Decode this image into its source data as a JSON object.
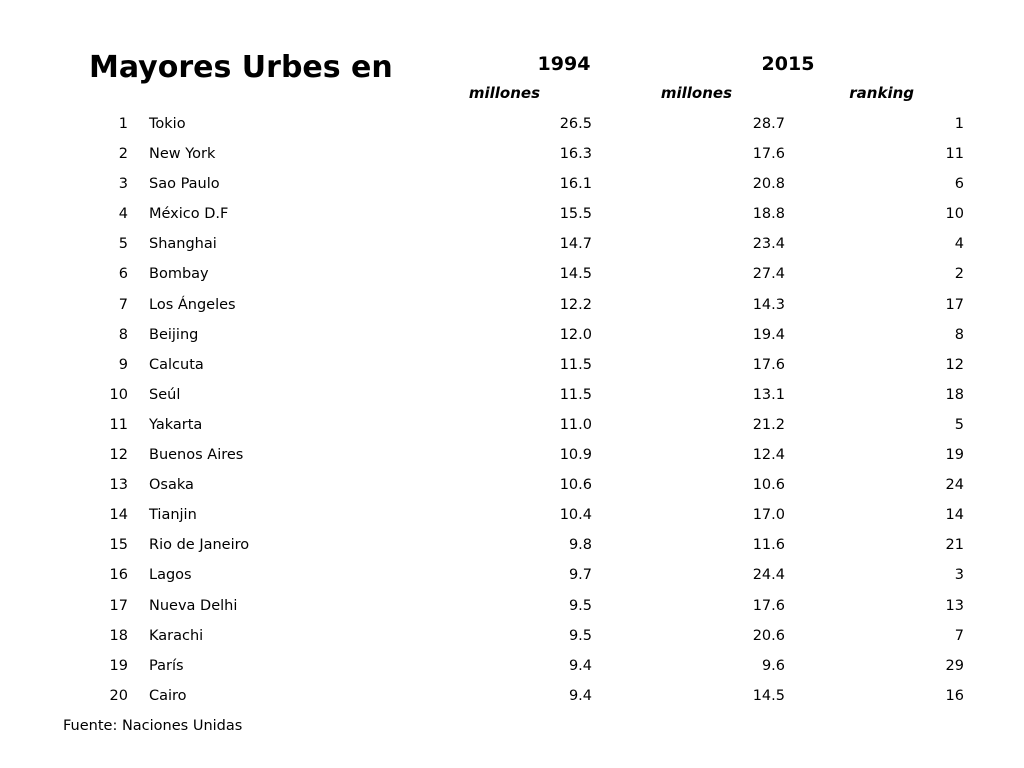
{
  "title": "Mayores Urbes en",
  "headers": {
    "year_1": "1994",
    "year_2": "2015",
    "unit_1994": "millones",
    "unit_2015": "millones",
    "unit_rank": "ranking"
  },
  "rows": [
    {
      "num": "1",
      "city": "Tokio",
      "v1994": "26.5",
      "v2015": "28.7",
      "rank2015": "1"
    },
    {
      "num": "2",
      "city": "New York",
      "v1994": "16.3",
      "v2015": "17.6",
      "rank2015": "11"
    },
    {
      "num": "3",
      "city": "Sao Paulo",
      "v1994": "16.1",
      "v2015": "20.8",
      "rank2015": "6"
    },
    {
      "num": "4",
      "city": "México D.F",
      "v1994": "15.5",
      "v2015": "18.8",
      "rank2015": "10"
    },
    {
      "num": "5",
      "city": "Shanghai",
      "v1994": "14.7",
      "v2015": "23.4",
      "rank2015": "4"
    },
    {
      "num": "6",
      "city": "Bombay",
      "v1994": "14.5",
      "v2015": "27.4",
      "rank2015": "2"
    },
    {
      "num": "7",
      "city": "Los Ángeles",
      "v1994": "12.2",
      "v2015": "14.3",
      "rank2015": "17"
    },
    {
      "num": "8",
      "city": "Beijing",
      "v1994": "12.0",
      "v2015": "19.4",
      "rank2015": "8"
    },
    {
      "num": "9",
      "city": "Calcuta",
      "v1994": "11.5",
      "v2015": "17.6",
      "rank2015": "12"
    },
    {
      "num": "10",
      "city": "Seúl",
      "v1994": "11.5",
      "v2015": "13.1",
      "rank2015": "18"
    },
    {
      "num": "11",
      "city": "Yakarta",
      "v1994": "11.0",
      "v2015": "21.2",
      "rank2015": "5"
    },
    {
      "num": "12",
      "city": "Buenos Aires",
      "v1994": "10.9",
      "v2015": "12.4",
      "rank2015": "19"
    },
    {
      "num": "13",
      "city": "Osaka",
      "v1994": "10.6",
      "v2015": "10.6",
      "rank2015": "24"
    },
    {
      "num": "14",
      "city": "Tianjin",
      "v1994": "10.4",
      "v2015": "17.0",
      "rank2015": "14"
    },
    {
      "num": "15",
      "city": "Rio de Janeiro",
      "v1994": "9.8",
      "v2015": "11.6",
      "rank2015": "21"
    },
    {
      "num": "16",
      "city": "Lagos",
      "v1994": "9.7",
      "v2015": "24.4",
      "rank2015": "3"
    },
    {
      "num": "17",
      "city": "Nueva Delhi",
      "v1994": "9.5",
      "v2015": "17.6",
      "rank2015": "13"
    },
    {
      "num": "18",
      "city": "Karachi",
      "v1994": "9.5",
      "v2015": "20.6",
      "rank2015": "7"
    },
    {
      "num": "19",
      "city": "París",
      "v1994": "9.4",
      "v2015": "9.6",
      "rank2015": "29"
    },
    {
      "num": "20",
      "city": "Cairo",
      "v1994": "9.4",
      "v2015": "14.5",
      "rank2015": "16"
    }
  ],
  "source": "Fuente: Naciones Unidas"
}
